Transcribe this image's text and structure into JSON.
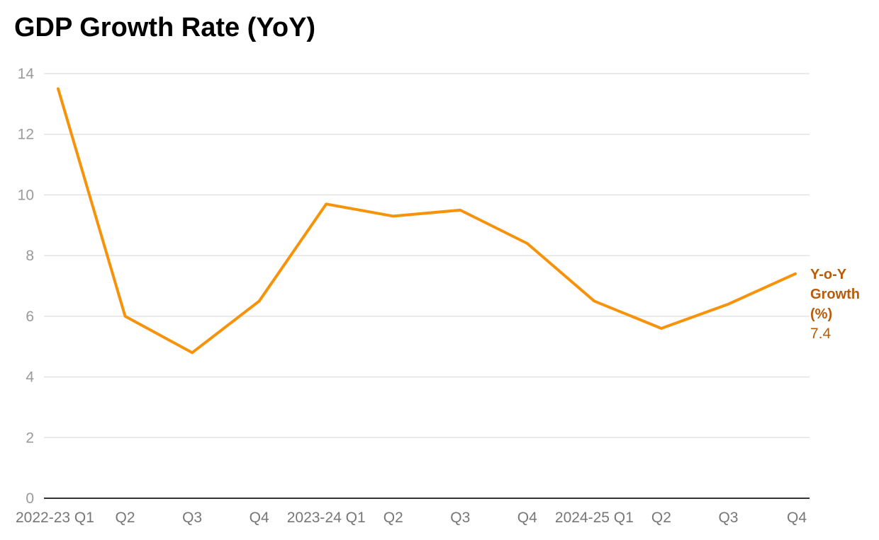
{
  "chart_data": {
    "type": "line",
    "title": "GDP Growth Rate (YoY)",
    "categories": [
      "2022-23 Q1",
      "Q2",
      "Q3",
      "Q4",
      "2023-24 Q1",
      "Q2",
      "Q3",
      "Q4",
      "2024-25 Q1",
      "Q2",
      "Q3",
      "Q4"
    ],
    "series": [
      {
        "name": "Y-o-Y Growth (%)",
        "name_lines": [
          "Y-o-Y",
          "Growth",
          "(%)"
        ],
        "values": [
          13.5,
          6.0,
          4.8,
          6.5,
          9.7,
          9.3,
          9.5,
          8.4,
          6.5,
          5.6,
          6.4,
          7.4
        ],
        "end_label": "7.4",
        "color": "#f7930a",
        "label_color": "#b85c0a"
      }
    ],
    "ylim": [
      0,
      14
    ],
    "yticks": [
      "0",
      "2",
      "4",
      "6",
      "8",
      "10",
      "12",
      "14"
    ],
    "xlabel": "",
    "ylabel": "",
    "grid": true,
    "legend": "direct label at line end (right)"
  }
}
